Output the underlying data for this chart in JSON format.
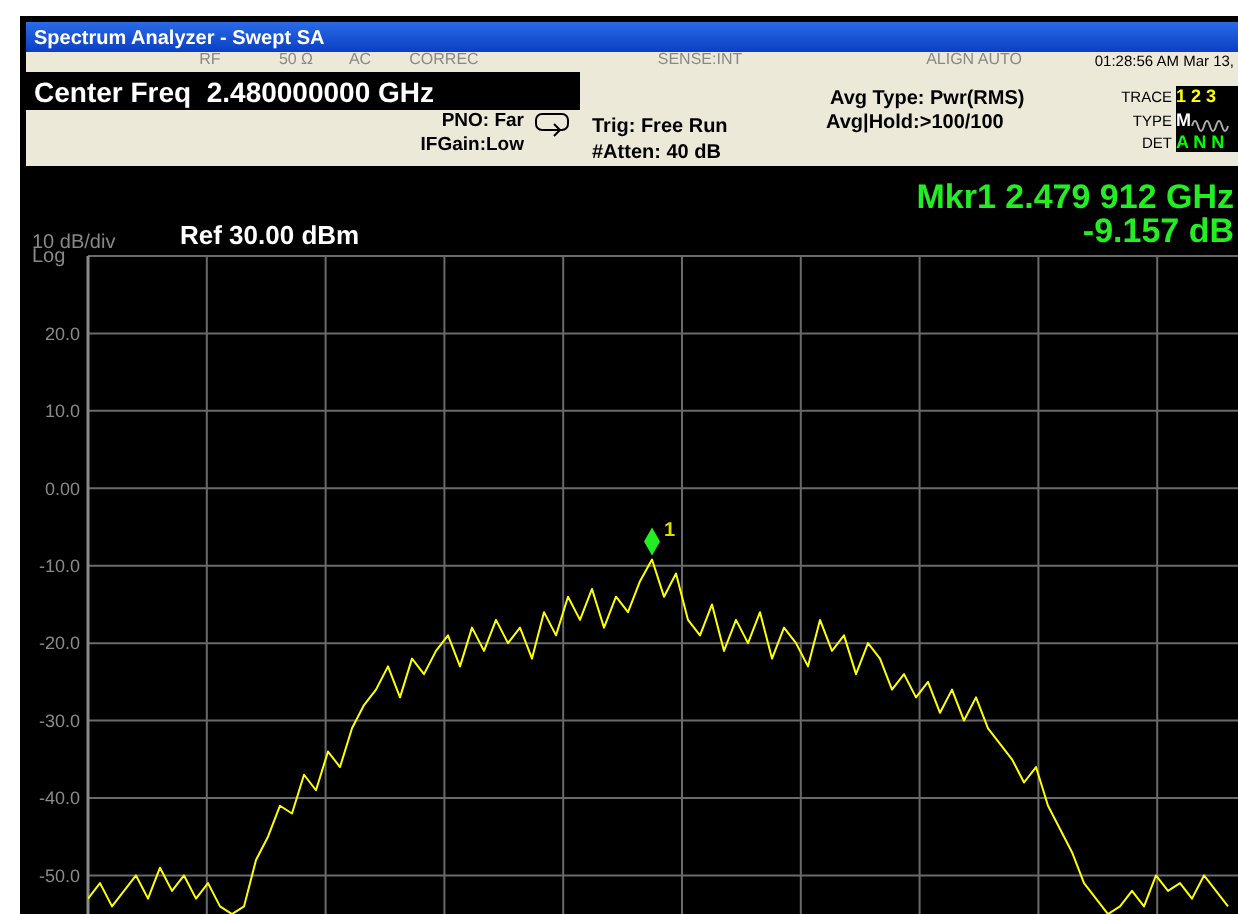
{
  "chart_data": {
    "type": "line",
    "title": "Spectrum Analyzer - Swept SA",
    "categories": [
      null,
      null,
      null,
      null,
      null,
      null,
      null,
      null,
      null,
      null,
      null,
      null,
      null,
      null,
      null,
      null,
      null,
      null,
      null,
      null,
      null,
      null,
      null,
      null,
      null,
      null,
      null,
      null,
      null,
      null,
      null,
      null,
      null,
      null,
      null,
      null,
      null,
      null,
      null,
      null,
      null,
      null,
      null,
      null,
      null,
      null,
      null,
      null,
      null,
      null,
      null,
      null,
      null,
      null,
      null,
      null,
      null,
      null,
      null,
      null,
      null,
      null,
      null,
      null,
      null,
      null,
      null,
      null,
      null,
      null,
      null,
      null,
      null,
      null,
      null,
      null,
      null,
      null,
      null,
      null,
      null,
      null,
      null,
      null,
      null,
      null,
      null,
      null,
      null,
      null,
      null,
      null,
      null,
      null,
      null,
      null,
      null,
      null,
      null,
      null
    ],
    "series": [
      {
        "color": "#ffff00",
        "values": [
          -53,
          -51,
          -54,
          -52,
          -50,
          -53,
          -49,
          -52,
          -50,
          -53,
          -51,
          -54,
          -55,
          -54,
          -48,
          -45,
          -41,
          -42,
          -37,
          -39,
          -34,
          -36,
          -31,
          -28,
          -26,
          -23,
          -27,
          -22,
          -24,
          -21,
          -19,
          -23,
          -18,
          -21,
          -17,
          -20,
          -18,
          -22,
          -16,
          -19,
          -14,
          -17,
          -13,
          -18,
          -14,
          -16,
          -12,
          -9.2,
          -14,
          -11,
          -17,
          -19,
          -15,
          -21,
          -17,
          -20,
          -16,
          -22,
          -18,
          -20,
          -23,
          -17,
          -21,
          -19,
          -24,
          -20,
          -22,
          -26,
          -24,
          -27,
          -25,
          -29,
          -26,
          -30,
          -27,
          -31,
          -33,
          -35,
          -38,
          -36,
          -41,
          -44,
          -47,
          -51,
          -53,
          -55,
          -54,
          -52,
          -54,
          -50,
          -52,
          -51,
          -53,
          -50,
          -52,
          -54,
          null,
          null,
          null,
          null
        ]
      }
    ],
    "ylim": [
      -55.5,
      30
    ],
    "yticks": [
      {
        "value": 20,
        "label": "20.0"
      },
      {
        "value": 10,
        "label": "10.0"
      },
      {
        "value": 0,
        "label": "0.00"
      },
      {
        "value": -10,
        "label": "-10.0"
      },
      {
        "value": -20,
        "label": "-20.0"
      },
      {
        "value": -30,
        "label": "-30.0"
      },
      {
        "value": -40,
        "label": "-40.0"
      },
      {
        "value": -50,
        "label": "-50.0"
      }
    ],
    "tick_labels": "y",
    "grid": true,
    "marker": "none",
    "line_style": "solid",
    "annotations": [
      "RF",
      "50 Ω",
      "AC",
      "CORREC",
      "SENSE:INT",
      "ALIGN AUTO",
      "01:28:56 AM Mar 13,",
      "Center Freq  2.480000000 GHz",
      "PNO: Far",
      "IFGain:Low",
      "Trig: Free Run",
      "#Atten: 40 dB",
      "Avg Type: Pwr(RMS)",
      "Avg|Hold:>100/100",
      "TRACE",
      "1 2 3",
      "TYPE",
      "M",
      "DET",
      "A N N",
      "Mkr1 2.479 912 GHz",
      "-9.157 dB",
      "10 dB/div",
      "Ref 30.00 dBm",
      "Log",
      "1"
    ]
  }
}
